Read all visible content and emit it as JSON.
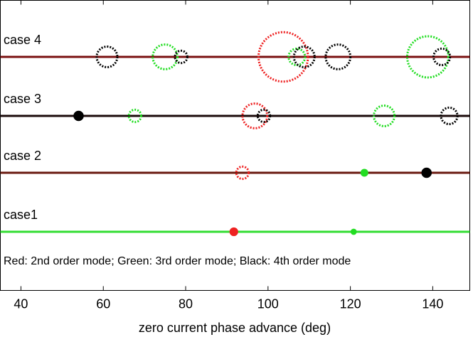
{
  "chart_data": {
    "type": "scatter",
    "xlabel": "zero current phase advance (deg)",
    "note": "Red: 2nd order mode; Green: 3rd order mode; Black: 4th order mode",
    "xlim": [
      35,
      149
    ],
    "xticks": [
      40,
      60,
      80,
      100,
      120,
      140
    ],
    "rows": [
      {
        "label": "case 4",
        "line_color": "#7a1010",
        "circles": {
          "x": [
            60.9,
            75,
            78.9,
            103.7,
            107,
            108.8,
            117,
            138.8,
            142.2
          ],
          "r": [
            2.5,
            3,
            1.5,
            6,
            2,
            2.5,
            3,
            5,
            2
          ],
          "color": [
            "#000000",
            "#22dd22",
            "#000000",
            "#ee2222",
            "#22dd22",
            "#000000",
            "#000000",
            "#22dd22",
            "#000000"
          ]
        }
      },
      {
        "label": "case 3",
        "line_color": "#1a0a0a",
        "circles": {
          "x": [
            54,
            67.7,
            96.8,
            99,
            128.2,
            144
          ],
          "r": [
            1,
            1.5,
            3,
            1.5,
            2.5,
            2
          ],
          "color": [
            "#000000",
            "#22dd22",
            "#ee2222",
            "#000000",
            "#22dd22",
            "#000000"
          ]
        }
      },
      {
        "label": "case 2",
        "line_color": "#6a1a10",
        "circles": {
          "x": [
            93.8,
            123.4,
            138.5
          ],
          "r": [
            1.5,
            0.7,
            1
          ],
          "color": [
            "#ee2222",
            "#22dd22",
            "#000000"
          ]
        }
      },
      {
        "label": "case1",
        "line_color": "#33dd33",
        "circles": {
          "x": [
            91.7,
            120.8
          ],
          "r": [
            0.8,
            0.5
          ],
          "color": [
            "#ee2222",
            "#22dd22"
          ]
        }
      }
    ]
  }
}
